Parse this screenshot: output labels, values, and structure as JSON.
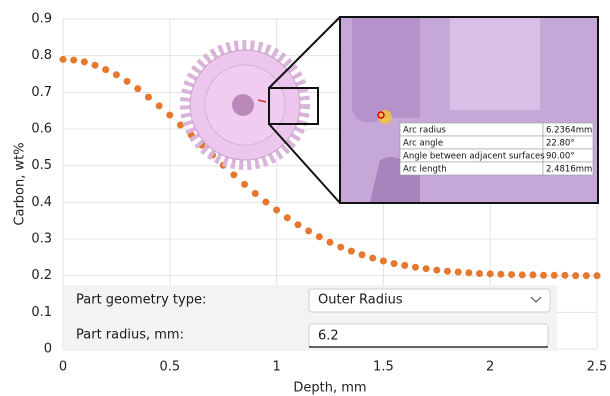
{
  "chart_data": {
    "type": "scatter",
    "xlabel": "Depth, mm",
    "ylabel": "Carbon, wt%",
    "x": [
      0,
      0.05,
      0.1,
      0.15,
      0.2,
      0.25,
      0.3,
      0.35,
      0.4,
      0.45,
      0.5,
      0.55,
      0.6,
      0.65,
      0.7,
      0.75,
      0.8,
      0.85,
      0.9,
      0.95,
      1,
      1.05,
      1.1,
      1.15,
      1.2,
      1.25,
      1.3,
      1.35,
      1.4,
      1.45,
      1.5,
      1.55,
      1.6,
      1.65,
      1.7,
      1.75,
      1.8,
      1.85,
      1.9,
      1.95,
      2,
      2.05,
      2.1,
      2.15,
      2.2,
      2.25,
      2.3,
      2.35,
      2.4,
      2.45,
      2.5
    ],
    "values": [
      0.79,
      0.788,
      0.783,
      0.774,
      0.762,
      0.748,
      0.73,
      0.71,
      0.687,
      0.663,
      0.638,
      0.611,
      0.584,
      0.556,
      0.529,
      0.501,
      0.475,
      0.449,
      0.424,
      0.401,
      0.379,
      0.358,
      0.339,
      0.322,
      0.306,
      0.291,
      0.278,
      0.267,
      0.257,
      0.248,
      0.24,
      0.233,
      0.228,
      0.223,
      0.219,
      0.215,
      0.212,
      0.21,
      0.208,
      0.206,
      0.205,
      0.204,
      0.203,
      0.202,
      0.202,
      0.201,
      0.201,
      0.201,
      0.2,
      0.2,
      0.2
    ],
    "color": "#e8772e",
    "xlim": [
      0,
      2.5
    ],
    "xticks": [
      0,
      0.5,
      1,
      1.5,
      2,
      2.5
    ],
    "ylim": [
      0,
      0.9
    ],
    "yticks": [
      0,
      0.1,
      0.2,
      0.3,
      0.4,
      0.5,
      0.6,
      0.7,
      0.8,
      0.9
    ],
    "grid": true
  },
  "measurement_table": {
    "rows": [
      [
        "Arc radius",
        "6.2364mm"
      ],
      [
        "Arc angle",
        "22.80°"
      ],
      [
        "Angle between adjacent surfaces",
        "90.00°"
      ],
      [
        "Arc length",
        "2.4816mm"
      ]
    ]
  },
  "form": {
    "fields": [
      {
        "label": "Part geometry type:",
        "value": "Outer Radius"
      },
      {
        "label": "Part radius, mm:",
        "value": "6.2"
      }
    ]
  }
}
